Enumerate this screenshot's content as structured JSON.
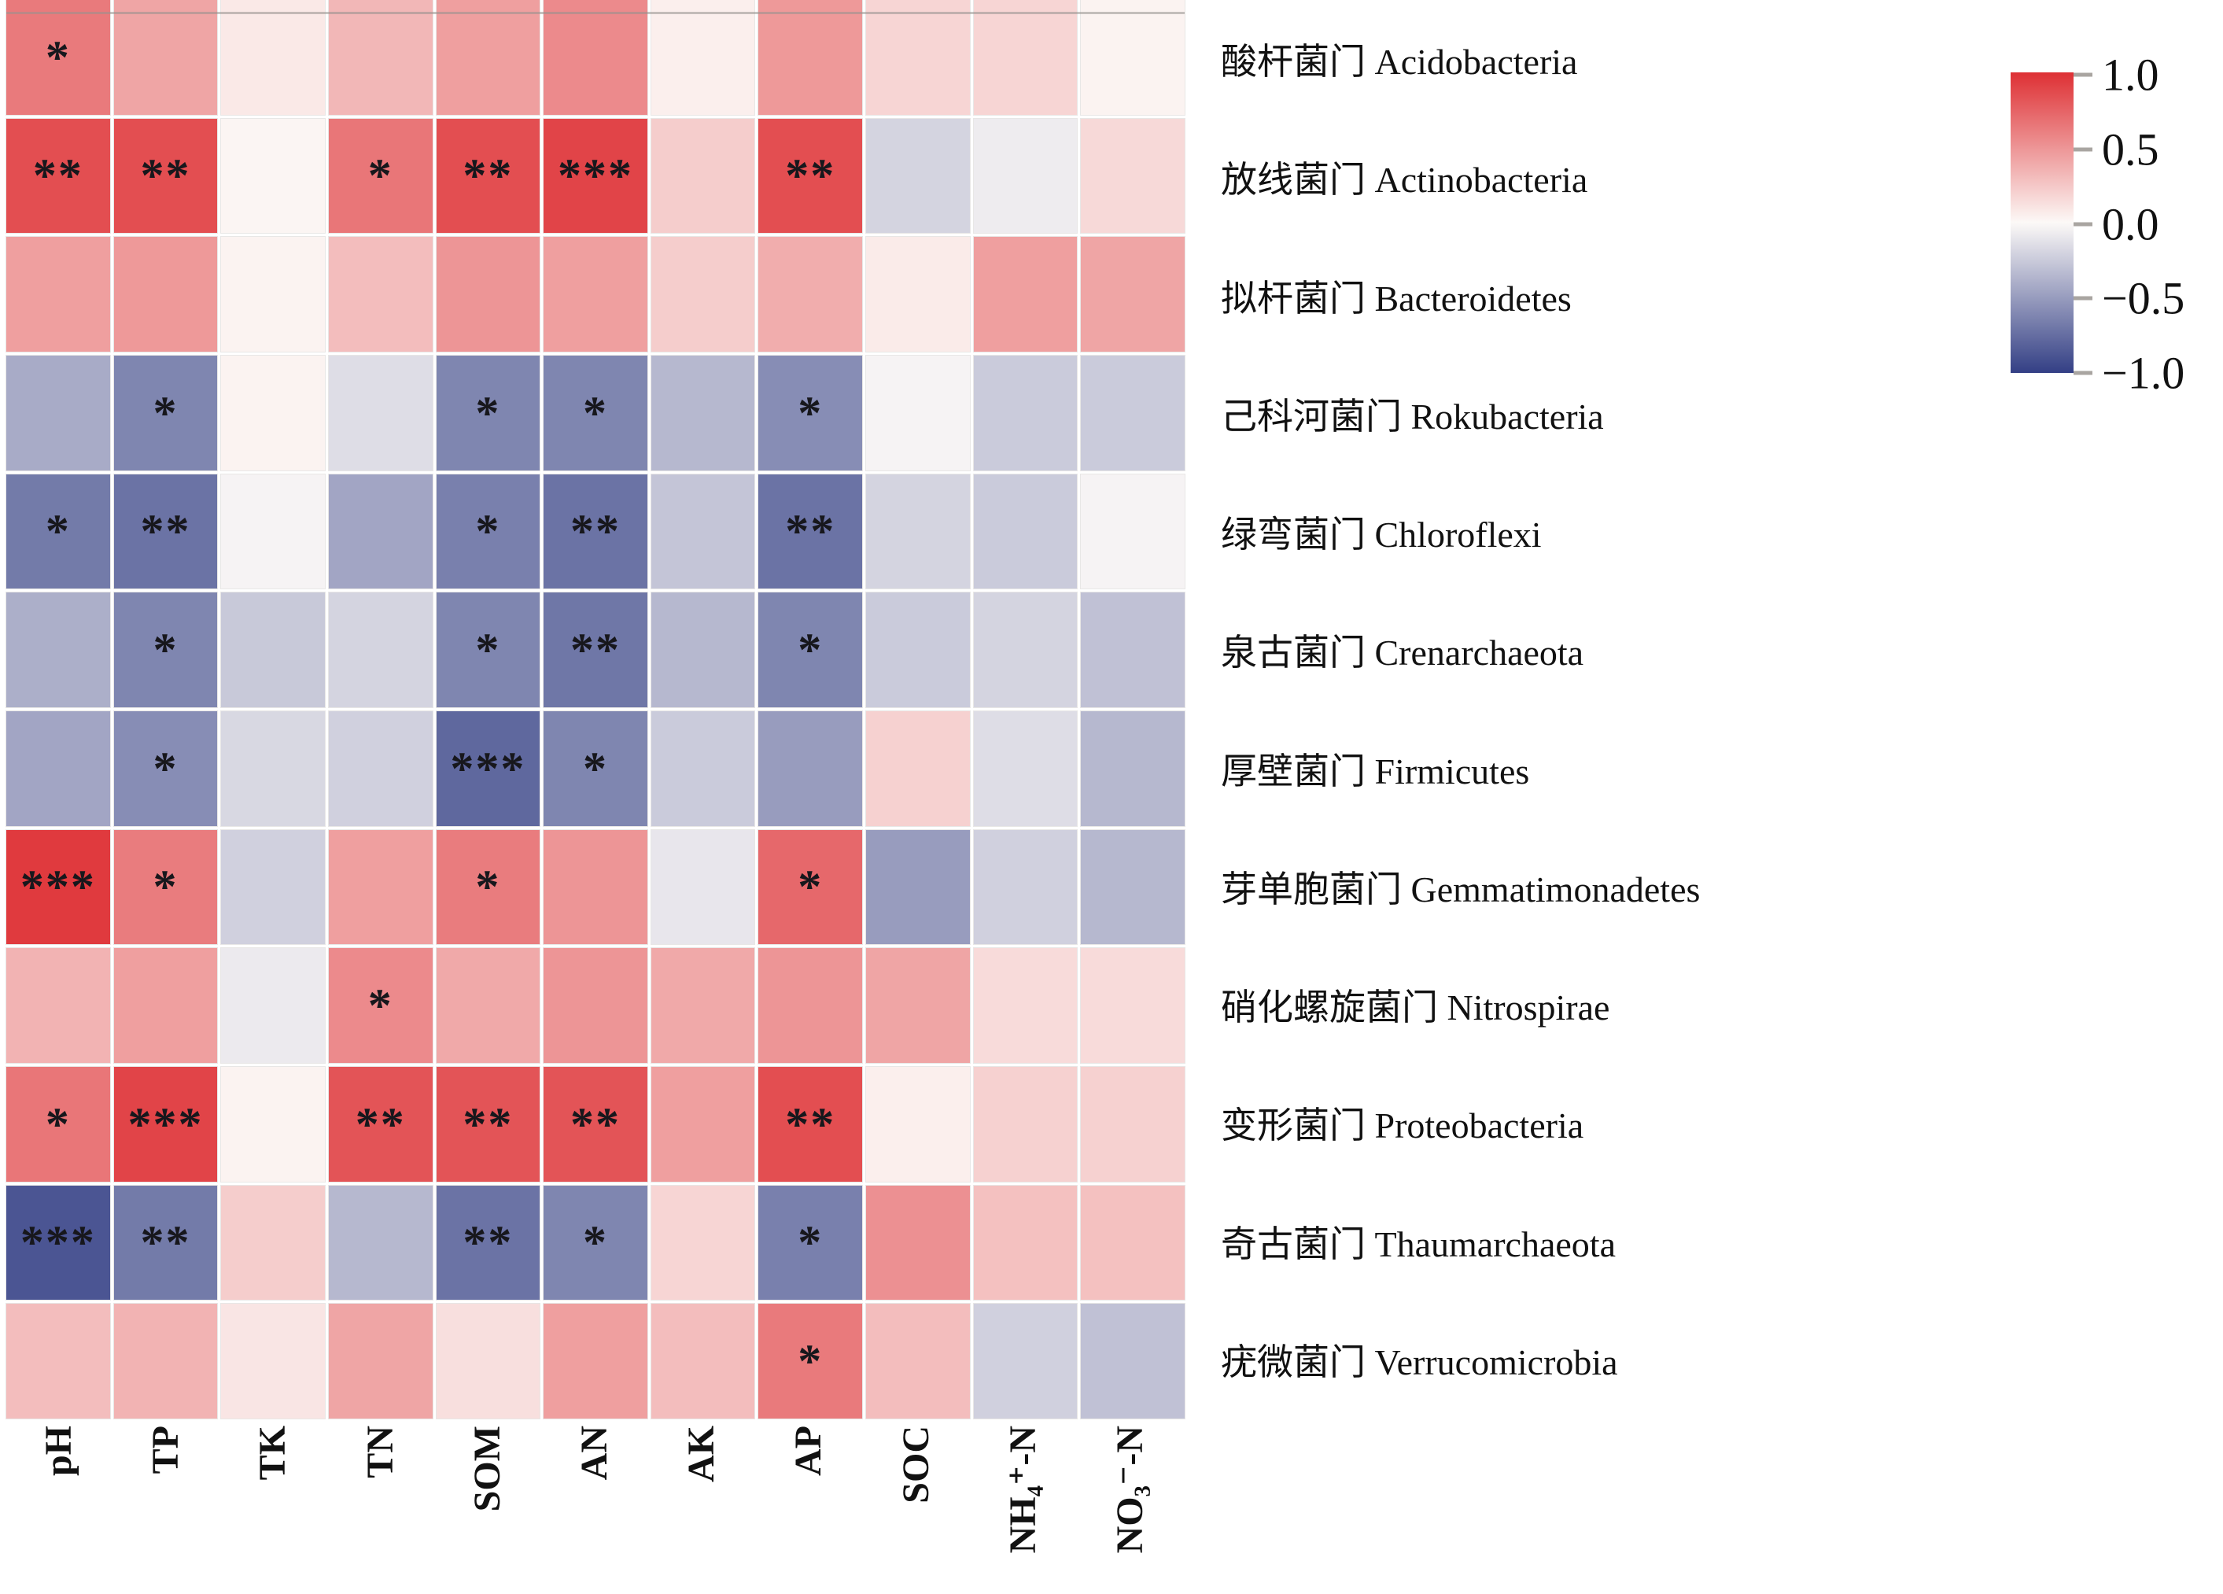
{
  "figure": {
    "background": "#ffffff"
  },
  "chart_data": {
    "type": "heatmap",
    "title": "",
    "xlabel": "",
    "ylabel": "",
    "grid": "white gaps between cells",
    "legend_position": "right-top",
    "value_domain": [
      -1.0,
      1.0
    ],
    "colorscale": {
      "positive": "#de3034",
      "zero": "#fcf9f7",
      "negative": "#333f85"
    },
    "columns": [
      "pH",
      "TP",
      "TK",
      "TN",
      "SOM",
      "AN",
      "AK",
      "AP",
      "SOC",
      "NH₄⁺-N",
      "NO₃⁻-N"
    ],
    "rows": [
      "酸杆菌门 Acidobacteria",
      "放线菌门 Actinobacteria",
      "拟杆菌门 Bacteroidetes",
      "己科河菌门 Rokubacteria",
      "绿弯菌门 Chloroflexi",
      "泉古菌门 Crenarchaeota",
      "厚壁菌门 Firmicutes",
      "芽单胞菌门 Gemmatimonadetes",
      "硝化螺旋菌门 Nitrospirae",
      "变形菌门 Proteobacteria",
      "奇古菌门 Thaumarchaeota",
      "疣微菌门 Verrucomicrobia"
    ],
    "values": [
      [
        0.63,
        0.42,
        0.08,
        0.33,
        0.45,
        0.55,
        0.05,
        0.48,
        0.18,
        0.18,
        0.03
      ],
      [
        0.85,
        0.85,
        0.02,
        0.65,
        0.85,
        0.9,
        0.22,
        0.85,
        -0.2,
        -0.07,
        0.16
      ],
      [
        0.45,
        0.48,
        0.03,
        0.3,
        0.5,
        0.45,
        0.22,
        0.38,
        0.07,
        0.45,
        0.42
      ],
      [
        -0.42,
        -0.62,
        0.03,
        -0.15,
        -0.62,
        -0.62,
        -0.35,
        -0.58,
        -0.03,
        -0.25,
        -0.25
      ],
      [
        -0.68,
        -0.72,
        -0.03,
        -0.45,
        -0.65,
        -0.72,
        -0.28,
        -0.72,
        -0.2,
        -0.25,
        -0.03
      ],
      [
        -0.4,
        -0.62,
        -0.26,
        -0.2,
        -0.62,
        -0.7,
        -0.35,
        -0.62,
        -0.25,
        -0.2,
        -0.3
      ],
      [
        -0.45,
        -0.58,
        -0.18,
        -0.22,
        -0.78,
        -0.62,
        -0.25,
        -0.5,
        0.2,
        -0.15,
        -0.35
      ],
      [
        0.95,
        0.62,
        -0.22,
        0.45,
        0.62,
        0.5,
        -0.1,
        0.72,
        -0.5,
        -0.22,
        -0.35
      ],
      [
        0.35,
        0.45,
        -0.08,
        0.55,
        0.4,
        0.5,
        0.4,
        0.5,
        0.42,
        0.15,
        0.15
      ],
      [
        0.65,
        0.9,
        0.03,
        0.82,
        0.82,
        0.82,
        0.45,
        0.85,
        0.05,
        0.2,
        0.2
      ],
      [
        -0.88,
        -0.68,
        0.22,
        -0.35,
        -0.72,
        -0.62,
        0.18,
        -0.65,
        0.52,
        0.28,
        0.28
      ],
      [
        0.3,
        0.35,
        0.1,
        0.42,
        0.13,
        0.45,
        0.3,
        0.63,
        0.3,
        -0.22,
        -0.3
      ]
    ],
    "significance": [
      [
        "*",
        "",
        "",
        "",
        "",
        "",
        "",
        "",
        "",
        "",
        ""
      ],
      [
        "**",
        "**",
        "",
        "*",
        "**",
        "***",
        "",
        "**",
        "",
        "",
        ""
      ],
      [
        "",
        "",
        "",
        "",
        "",
        "",
        "",
        "",
        "",
        "",
        ""
      ],
      [
        "",
        "*",
        "",
        "",
        "*",
        "*",
        "",
        "*",
        "",
        "",
        ""
      ],
      [
        "*",
        "**",
        "",
        "",
        "*",
        "**",
        "",
        "**",
        "",
        "",
        ""
      ],
      [
        "",
        "*",
        "",
        "",
        "*",
        "**",
        "",
        "*",
        "",
        "",
        ""
      ],
      [
        "",
        "*",
        "",
        "",
        "***",
        "*",
        "",
        "",
        "",
        "",
        ""
      ],
      [
        "***",
        "*",
        "",
        "",
        "*",
        "",
        "",
        "*",
        "",
        "",
        ""
      ],
      [
        "",
        "",
        "",
        "*",
        "",
        "",
        "",
        "",
        "",
        "",
        ""
      ],
      [
        "*",
        "***",
        "",
        "**",
        "**",
        "**",
        "",
        "**",
        "",
        "",
        ""
      ],
      [
        "***",
        "**",
        "",
        "",
        "**",
        "*",
        "",
        "*",
        "",
        "",
        ""
      ],
      [
        "",
        "",
        "",
        "",
        "",
        "",
        "",
        "*",
        "",
        "",
        ""
      ]
    ],
    "legend": {
      "ticks": [
        "1.0",
        "0.5",
        "0.0",
        "−0.5",
        "−1.0"
      ],
      "tick_values": [
        1.0,
        0.5,
        0.0,
        -0.5,
        -1.0
      ]
    }
  }
}
